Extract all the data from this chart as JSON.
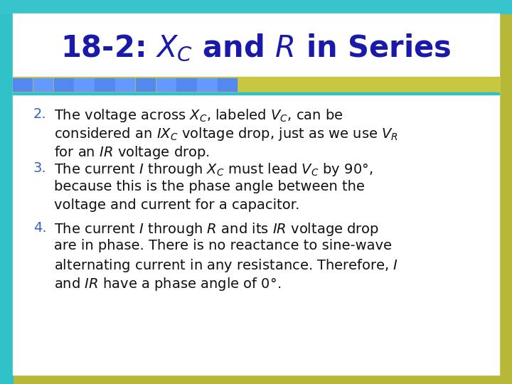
{
  "title_text": "$\\mathit{18\\text{-}2}$: $X_C$ and $R$ in Series",
  "title_color": "#1a1aaa",
  "title_fontsize": 30,
  "bg_outer": "#c8c060",
  "bg_teal": "#40c8d0",
  "bg_white": "#ffffff",
  "stripe_blue_dark": "#4466cc",
  "stripe_blue_light": "#88aaee",
  "stripe_olive": "#c8c840",
  "number_color": "#3366bb",
  "body_color": "#111111",
  "body_fontsize": 14,
  "checkerboard_n": 12,
  "checkerboard_size": 0.038,
  "items": [
    {
      "number": "2.",
      "lines": [
        "The voltage across $X_C$, labeled $V_C$, can be",
        "considered an $IX_C$ voltage drop, just as we use $V_R$",
        "for an $IR$ voltage drop."
      ]
    },
    {
      "number": "3.",
      "lines": [
        "The current $I$ through $X_C$ must lead $V_C$ by 90°,",
        "because this is the phase angle between the",
        "voltage and current for a capacitor."
      ]
    },
    {
      "number": "4.",
      "lines": [
        "The current $I$ through $R$ and its $IR$ voltage drop",
        "are in phase. There is no reactance to sine-wave",
        "alternating current in any resistance. Therefore, $I$",
        "and $IR$ have a phase angle of 0°."
      ]
    }
  ]
}
